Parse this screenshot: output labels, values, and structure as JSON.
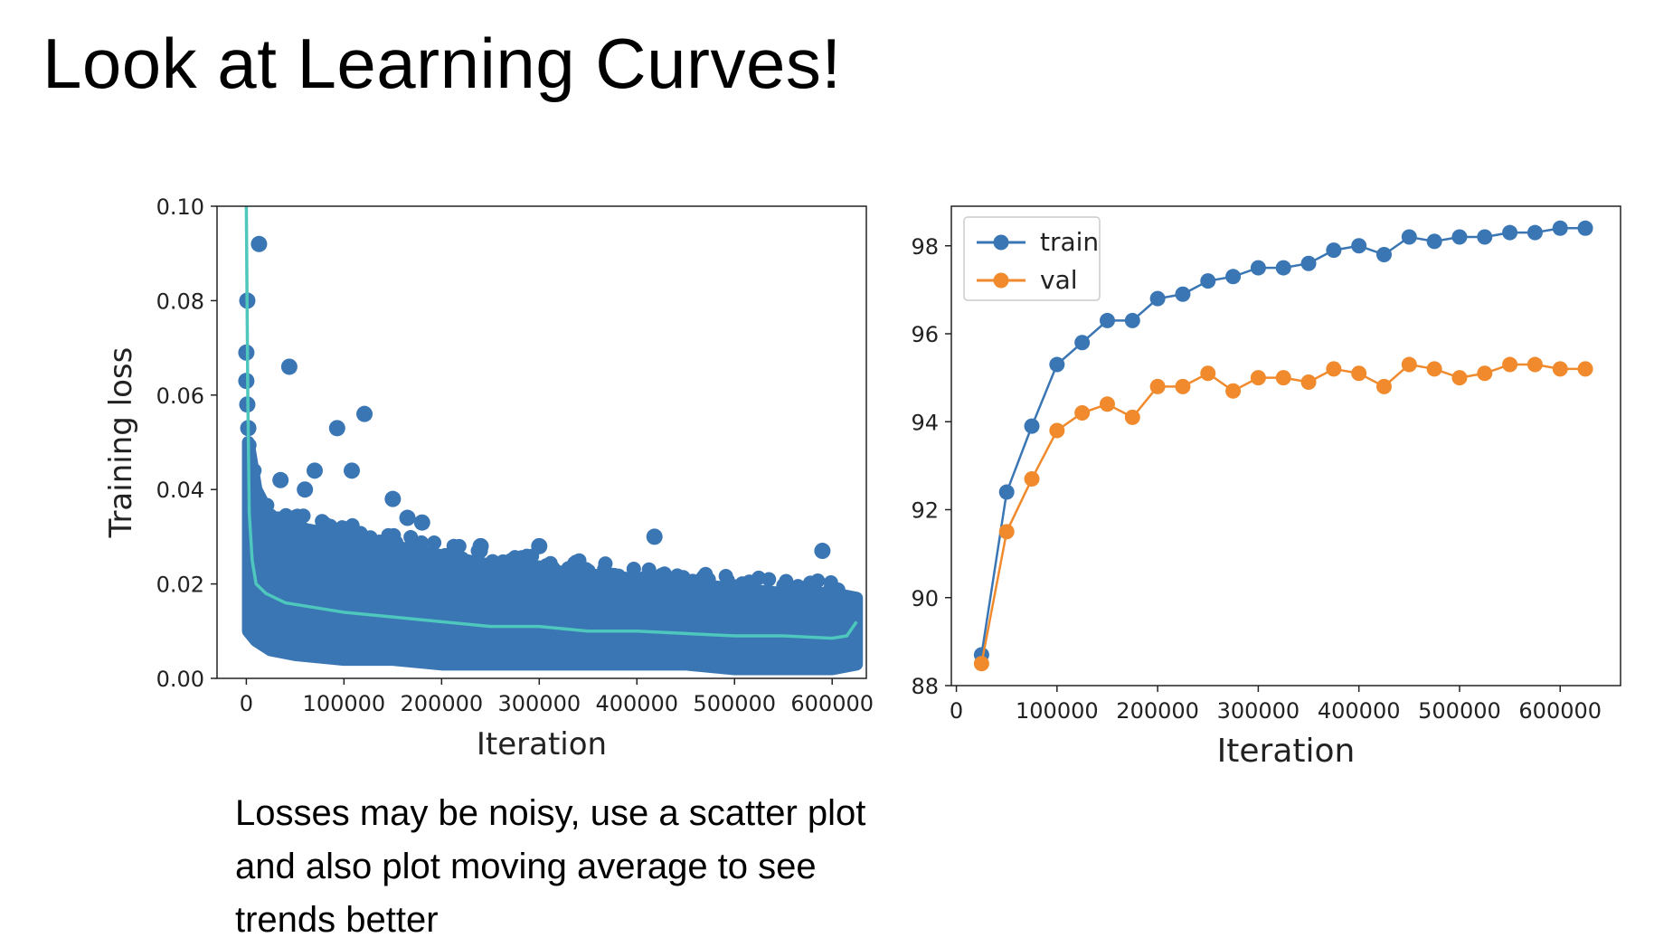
{
  "title": "Look at Learning Curves!",
  "caption": "Losses may be noisy, use a scatter plot and also plot moving average to see trends better",
  "colors": {
    "train": "#3a76b4",
    "val": "#f08a2c",
    "moving_average": "#4ec7bd",
    "scatter": "#3a76b4"
  },
  "chart_data": [
    {
      "type": "scatter",
      "xlabel": "Iteration",
      "ylabel": "Training loss",
      "xlim": [
        -30000,
        635000
      ],
      "ylim": [
        0.0,
        0.1
      ],
      "xticks": [
        "0",
        "100000",
        "200000",
        "300000",
        "400000",
        "500000",
        "600000"
      ],
      "xtick_values": [
        0,
        100000,
        200000,
        300000,
        400000,
        500000,
        600000
      ],
      "yticks": [
        "0.00",
        "0.02",
        "0.04",
        "0.06",
        "0.08",
        "0.10"
      ],
      "ytick_values": [
        0.0,
        0.02,
        0.04,
        0.06,
        0.08,
        0.1
      ],
      "outliers": [
        {
          "x": 13000,
          "y": 0.092
        },
        {
          "x": 1000,
          "y": 0.08
        },
        {
          "x": 0,
          "y": 0.069
        },
        {
          "x": 0,
          "y": 0.063
        },
        {
          "x": 1000,
          "y": 0.058
        },
        {
          "x": 2000,
          "y": 0.053
        },
        {
          "x": 44000,
          "y": 0.066
        },
        {
          "x": 93000,
          "y": 0.053
        },
        {
          "x": 121000,
          "y": 0.056
        },
        {
          "x": 70000,
          "y": 0.044
        },
        {
          "x": 108000,
          "y": 0.044
        },
        {
          "x": 150000,
          "y": 0.038
        },
        {
          "x": 180000,
          "y": 0.033
        },
        {
          "x": 240000,
          "y": 0.028
        },
        {
          "x": 300000,
          "y": 0.028
        },
        {
          "x": 418000,
          "y": 0.03
        },
        {
          "x": 590000,
          "y": 0.027
        },
        {
          "x": 35000,
          "y": 0.042
        },
        {
          "x": 60000,
          "y": 0.04
        },
        {
          "x": 165000,
          "y": 0.034
        }
      ],
      "band": {
        "x": [
          2000,
          10000,
          25000,
          50000,
          100000,
          150000,
          200000,
          250000,
          300000,
          350000,
          400000,
          450000,
          500000,
          550000,
          600000,
          625000
        ],
        "low": [
          0.01,
          0.008,
          0.006,
          0.005,
          0.004,
          0.004,
          0.003,
          0.003,
          0.003,
          0.003,
          0.003,
          0.003,
          0.002,
          0.002,
          0.002,
          0.003
        ],
        "high": [
          0.05,
          0.04,
          0.034,
          0.032,
          0.03,
          0.028,
          0.026,
          0.024,
          0.023,
          0.022,
          0.021,
          0.02,
          0.019,
          0.018,
          0.018,
          0.017
        ]
      },
      "moving_average": {
        "x": [
          0,
          1500,
          3000,
          6000,
          10000,
          20000,
          40000,
          70000,
          100000,
          150000,
          200000,
          250000,
          300000,
          350000,
          400000,
          450000,
          500000,
          550000,
          600000,
          615000,
          620000,
          625000
        ],
        "y": [
          0.1,
          0.06,
          0.035,
          0.025,
          0.02,
          0.018,
          0.016,
          0.015,
          0.014,
          0.013,
          0.012,
          0.011,
          0.011,
          0.01,
          0.01,
          0.0095,
          0.009,
          0.009,
          0.0085,
          0.009,
          0.0105,
          0.012
        ]
      }
    },
    {
      "type": "line",
      "xlabel": "Iteration",
      "ylabel": "",
      "xlim": [
        -5000,
        660000
      ],
      "ylim": [
        88,
        98.9
      ],
      "xticks": [
        "0",
        "100000",
        "200000",
        "300000",
        "400000",
        "500000",
        "600000"
      ],
      "xtick_values": [
        0,
        100000,
        200000,
        300000,
        400000,
        500000,
        600000
      ],
      "yticks": [
        "88",
        "90",
        "92",
        "94",
        "96",
        "98"
      ],
      "ytick_values": [
        88,
        90,
        92,
        94,
        96,
        98
      ],
      "legend": "upper-left",
      "x": [
        25000,
        50000,
        75000,
        100000,
        125000,
        150000,
        175000,
        200000,
        225000,
        250000,
        275000,
        300000,
        325000,
        350000,
        375000,
        400000,
        425000,
        450000,
        475000,
        500000,
        525000,
        550000,
        575000,
        600000,
        625000
      ],
      "series": [
        {
          "name": "train",
          "values": [
            88.7,
            92.4,
            93.9,
            95.3,
            95.8,
            96.3,
            96.3,
            96.8,
            96.9,
            97.2,
            97.3,
            97.5,
            97.5,
            97.6,
            97.9,
            98.0,
            97.8,
            98.2,
            98.1,
            98.2,
            98.2,
            98.3,
            98.3,
            98.4,
            98.4
          ]
        },
        {
          "name": "val",
          "values": [
            88.5,
            91.5,
            92.7,
            93.8,
            94.2,
            94.4,
            94.1,
            94.8,
            94.8,
            95.1,
            94.7,
            95.0,
            95.0,
            94.9,
            95.2,
            95.1,
            94.8,
            95.3,
            95.2,
            95.0,
            95.1,
            95.3,
            95.3,
            95.2,
            95.2
          ]
        }
      ]
    }
  ]
}
